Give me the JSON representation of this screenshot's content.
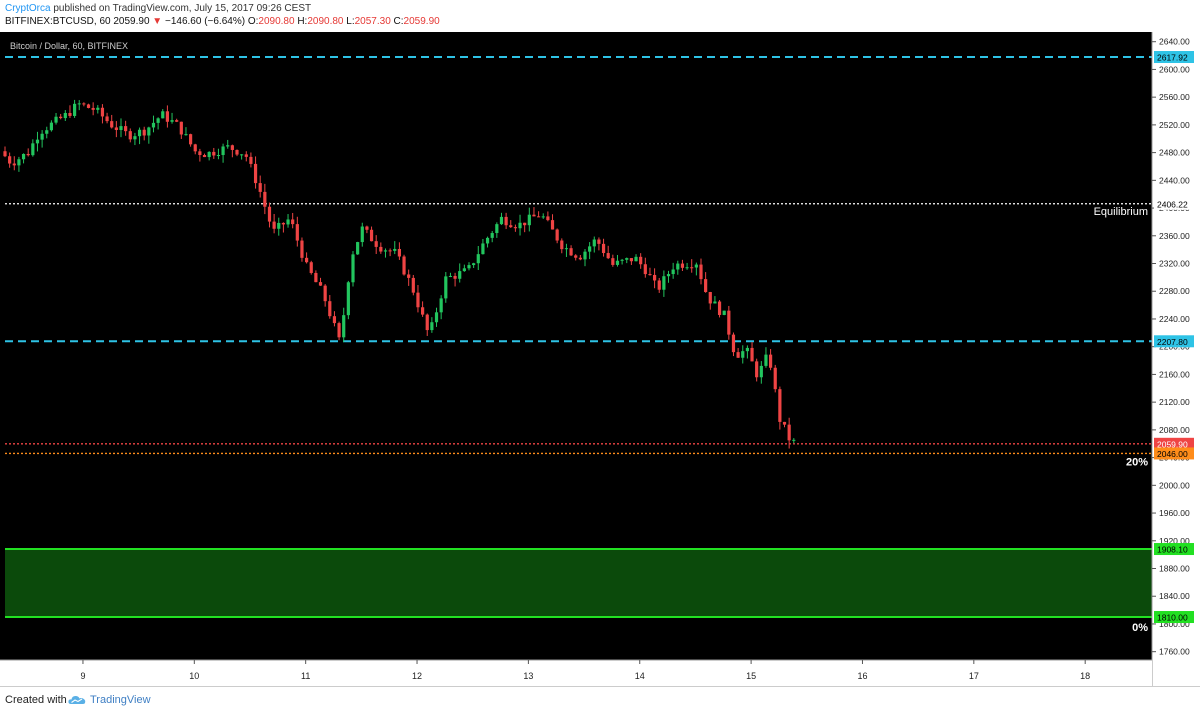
{
  "header": {
    "author": "CryptOrca",
    "published": "published on TradingView.com, July 15, 2017 09:26 CEST",
    "symbol": "BITFINEX:BTCUSD, 60",
    "price": "2059.90",
    "arrow": "▼",
    "change": "−146.60 (−6.64%)",
    "ohlc": {
      "o_label": "O:",
      "o": "2090.80",
      "h_label": "H:",
      "h": "2090.80",
      "l_label": "L:",
      "l": "2057.30",
      "c_label": "C:",
      "c": "2059.90"
    }
  },
  "footer": {
    "created": "Created with",
    "brand": "TradingView",
    "logo_icon": "tradingview-cloud-icon"
  },
  "colors": {
    "background": "#000000",
    "up": "#22c55e",
    "down": "#ef4444",
    "cyan": "#2ec3e6",
    "white_dotted": "#ffffff",
    "orange": "#ff8c1a",
    "zone_fill": "#0b4a0b",
    "zone_line": "#22e022"
  },
  "chart_data": {
    "type": "candlestick",
    "title": "Bitcoin / Dollar, 60, BITFINEX",
    "x_tick_labels": [
      "9",
      "10",
      "11",
      "12",
      "13",
      "14",
      "15",
      "16",
      "17",
      "18"
    ],
    "x_range_days": [
      8.3,
      18.6
    ],
    "y_range": [
      1748,
      2654
    ],
    "y_tick_step": 40,
    "y_tick_min": 1760,
    "y_tick_max": 2640,
    "price_levels": [
      {
        "price": 2617.92,
        "label": "2617.92",
        "style": "dashed",
        "color": "#2ec3e6"
      },
      {
        "price": 2406.22,
        "label": "2406.22",
        "style": "dotted",
        "color": "#ffffff",
        "text": "Equilibrium"
      },
      {
        "price": 2207.8,
        "label": "2207.80",
        "style": "dashed",
        "color": "#2ec3e6"
      },
      {
        "price": 2059.9,
        "label": "2059.90",
        "style": "dotted",
        "color": "#ef4444"
      },
      {
        "price": 2046.0,
        "label": "2046.00",
        "style": "dotted",
        "color": "#ff8c1a",
        "text": "20%"
      }
    ],
    "zone": {
      "top": 1908.1,
      "bottom": 1810.0,
      "top_label": "1908.10",
      "bottom_label": "1810.00",
      "bottom_text": "0%"
    },
    "path_anchors": [
      [
        8.3,
        2482
      ],
      [
        8.4,
        2465
      ],
      [
        8.55,
        2480
      ],
      [
        8.65,
        2510
      ],
      [
        8.75,
        2520
      ],
      [
        8.9,
        2535
      ],
      [
        9.0,
        2550
      ],
      [
        9.15,
        2542
      ],
      [
        9.3,
        2520
      ],
      [
        9.45,
        2505
      ],
      [
        9.6,
        2512
      ],
      [
        9.75,
        2535
      ],
      [
        9.9,
        2518
      ],
      [
        10.05,
        2482
      ],
      [
        10.15,
        2478
      ],
      [
        10.35,
        2488
      ],
      [
        10.5,
        2478
      ],
      [
        10.62,
        2430
      ],
      [
        10.75,
        2365
      ],
      [
        10.9,
        2385
      ],
      [
        11.05,
        2315
      ],
      [
        11.2,
        2275
      ],
      [
        11.35,
        2205
      ],
      [
        11.45,
        2330
      ],
      [
        11.55,
        2370
      ],
      [
        11.7,
        2345
      ],
      [
        11.85,
        2335
      ],
      [
        12.0,
        2285
      ],
      [
        12.15,
        2215
      ],
      [
        12.3,
        2298
      ],
      [
        12.5,
        2310
      ],
      [
        12.65,
        2352
      ],
      [
        12.8,
        2385
      ],
      [
        12.95,
        2375
      ],
      [
        13.15,
        2392
      ],
      [
        13.35,
        2345
      ],
      [
        13.5,
        2330
      ],
      [
        13.65,
        2355
      ],
      [
        13.8,
        2318
      ],
      [
        14.0,
        2328
      ],
      [
        14.1,
        2310
      ],
      [
        14.2,
        2282
      ],
      [
        14.35,
        2318
      ],
      [
        14.55,
        2322
      ],
      [
        14.65,
        2272
      ],
      [
        14.8,
        2245
      ],
      [
        14.9,
        2188
      ],
      [
        15.0,
        2195
      ],
      [
        15.1,
        2158
      ],
      [
        15.2,
        2190
      ],
      [
        15.3,
        2095
      ],
      [
        15.4,
        2062
      ]
    ]
  }
}
